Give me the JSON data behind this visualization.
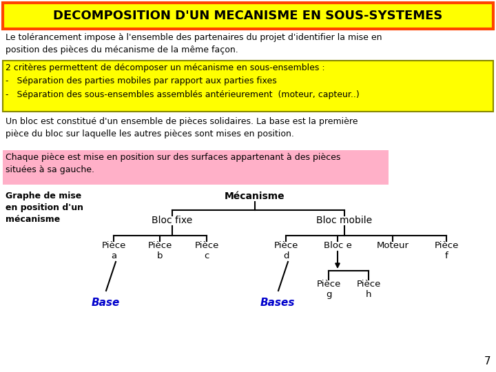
{
  "title": "DECOMPOSITION D'UN MECANISME EN SOUS-SYSTEMES",
  "title_bg": "#FFFF00",
  "title_border": "#FF4400",
  "title_color": "#000000",
  "para1": "Le tolérancement impose à l'ensemble des partenaires du projet d'identifier la mise en\nposition des pièces du mécanisme de la même façon.",
  "yellow_box_lines": [
    "2 critères permettent de décomposer un mécanisme en sous-ensembles :",
    "-   Séparation des parties mobiles par rapport aux parties fixes",
    "-   Séparation des sous-ensembles assemblés antérieurement  (moteur, capteur..)"
  ],
  "yellow_box_bg": "#FFFF00",
  "yellow_box_border": "#888800",
  "para2": "Un bloc est constitué d'un ensemble de pièces solidaires. La base est la première\npièce du bloc sur laquelle les autres pièces sont mises en position.",
  "pink_box_text": "Chaque pièce est mise en position sur des surfaces appartenant à des pièces\nsituées à sa gauche.",
  "pink_box_bg": "#FFB0C8",
  "graph_label": "Graphe de mise\nen position d'un\nmécanisme",
  "page_number": "7",
  "bg_color": "#FFFFFF",
  "tree_color": "#000000",
  "base_color": "#0000CC"
}
